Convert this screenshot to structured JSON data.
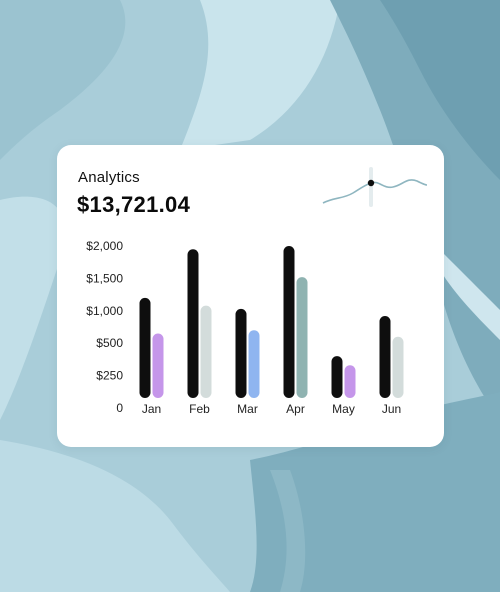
{
  "card": {
    "title": "Analytics",
    "amount": "$13,721.04"
  },
  "sparkline": {
    "icon": "wave-sparkline-icon",
    "color": "#8fb6c0"
  },
  "colors": {
    "background": "#a9cdd9",
    "primary_bar": "#0e0e0e",
    "purple": "#c596ea",
    "light_gray": "#d3dcdb",
    "blue": "#8fb5f0",
    "teal": "#8fb3b1"
  },
  "chart_data": {
    "type": "bar",
    "categories": [
      "Jan",
      "Feb",
      "Mar",
      "Apr",
      "May",
      "Jun"
    ],
    "y_ticks": [
      "0",
      "$250",
      "$500",
      "$1,000",
      "$1,500",
      "$2,000"
    ],
    "series": [
      {
        "values": [
          1200,
          1950,
          1030,
          2000,
          400,
          920
        ],
        "colors": [
          "#0e0e0e",
          "#0e0e0e",
          "#0e0e0e",
          "#0e0e0e",
          "#0e0e0e",
          "#0e0e0e"
        ]
      },
      {
        "values": [
          650,
          1080,
          700,
          1520,
          330,
          600
        ],
        "colors": [
          "#c596ea",
          "#d3dcdb",
          "#8fb5f0",
          "#8fb3b1",
          "#c596ea",
          "#d3dcdb"
        ]
      }
    ],
    "grid": false,
    "legend": "none"
  }
}
